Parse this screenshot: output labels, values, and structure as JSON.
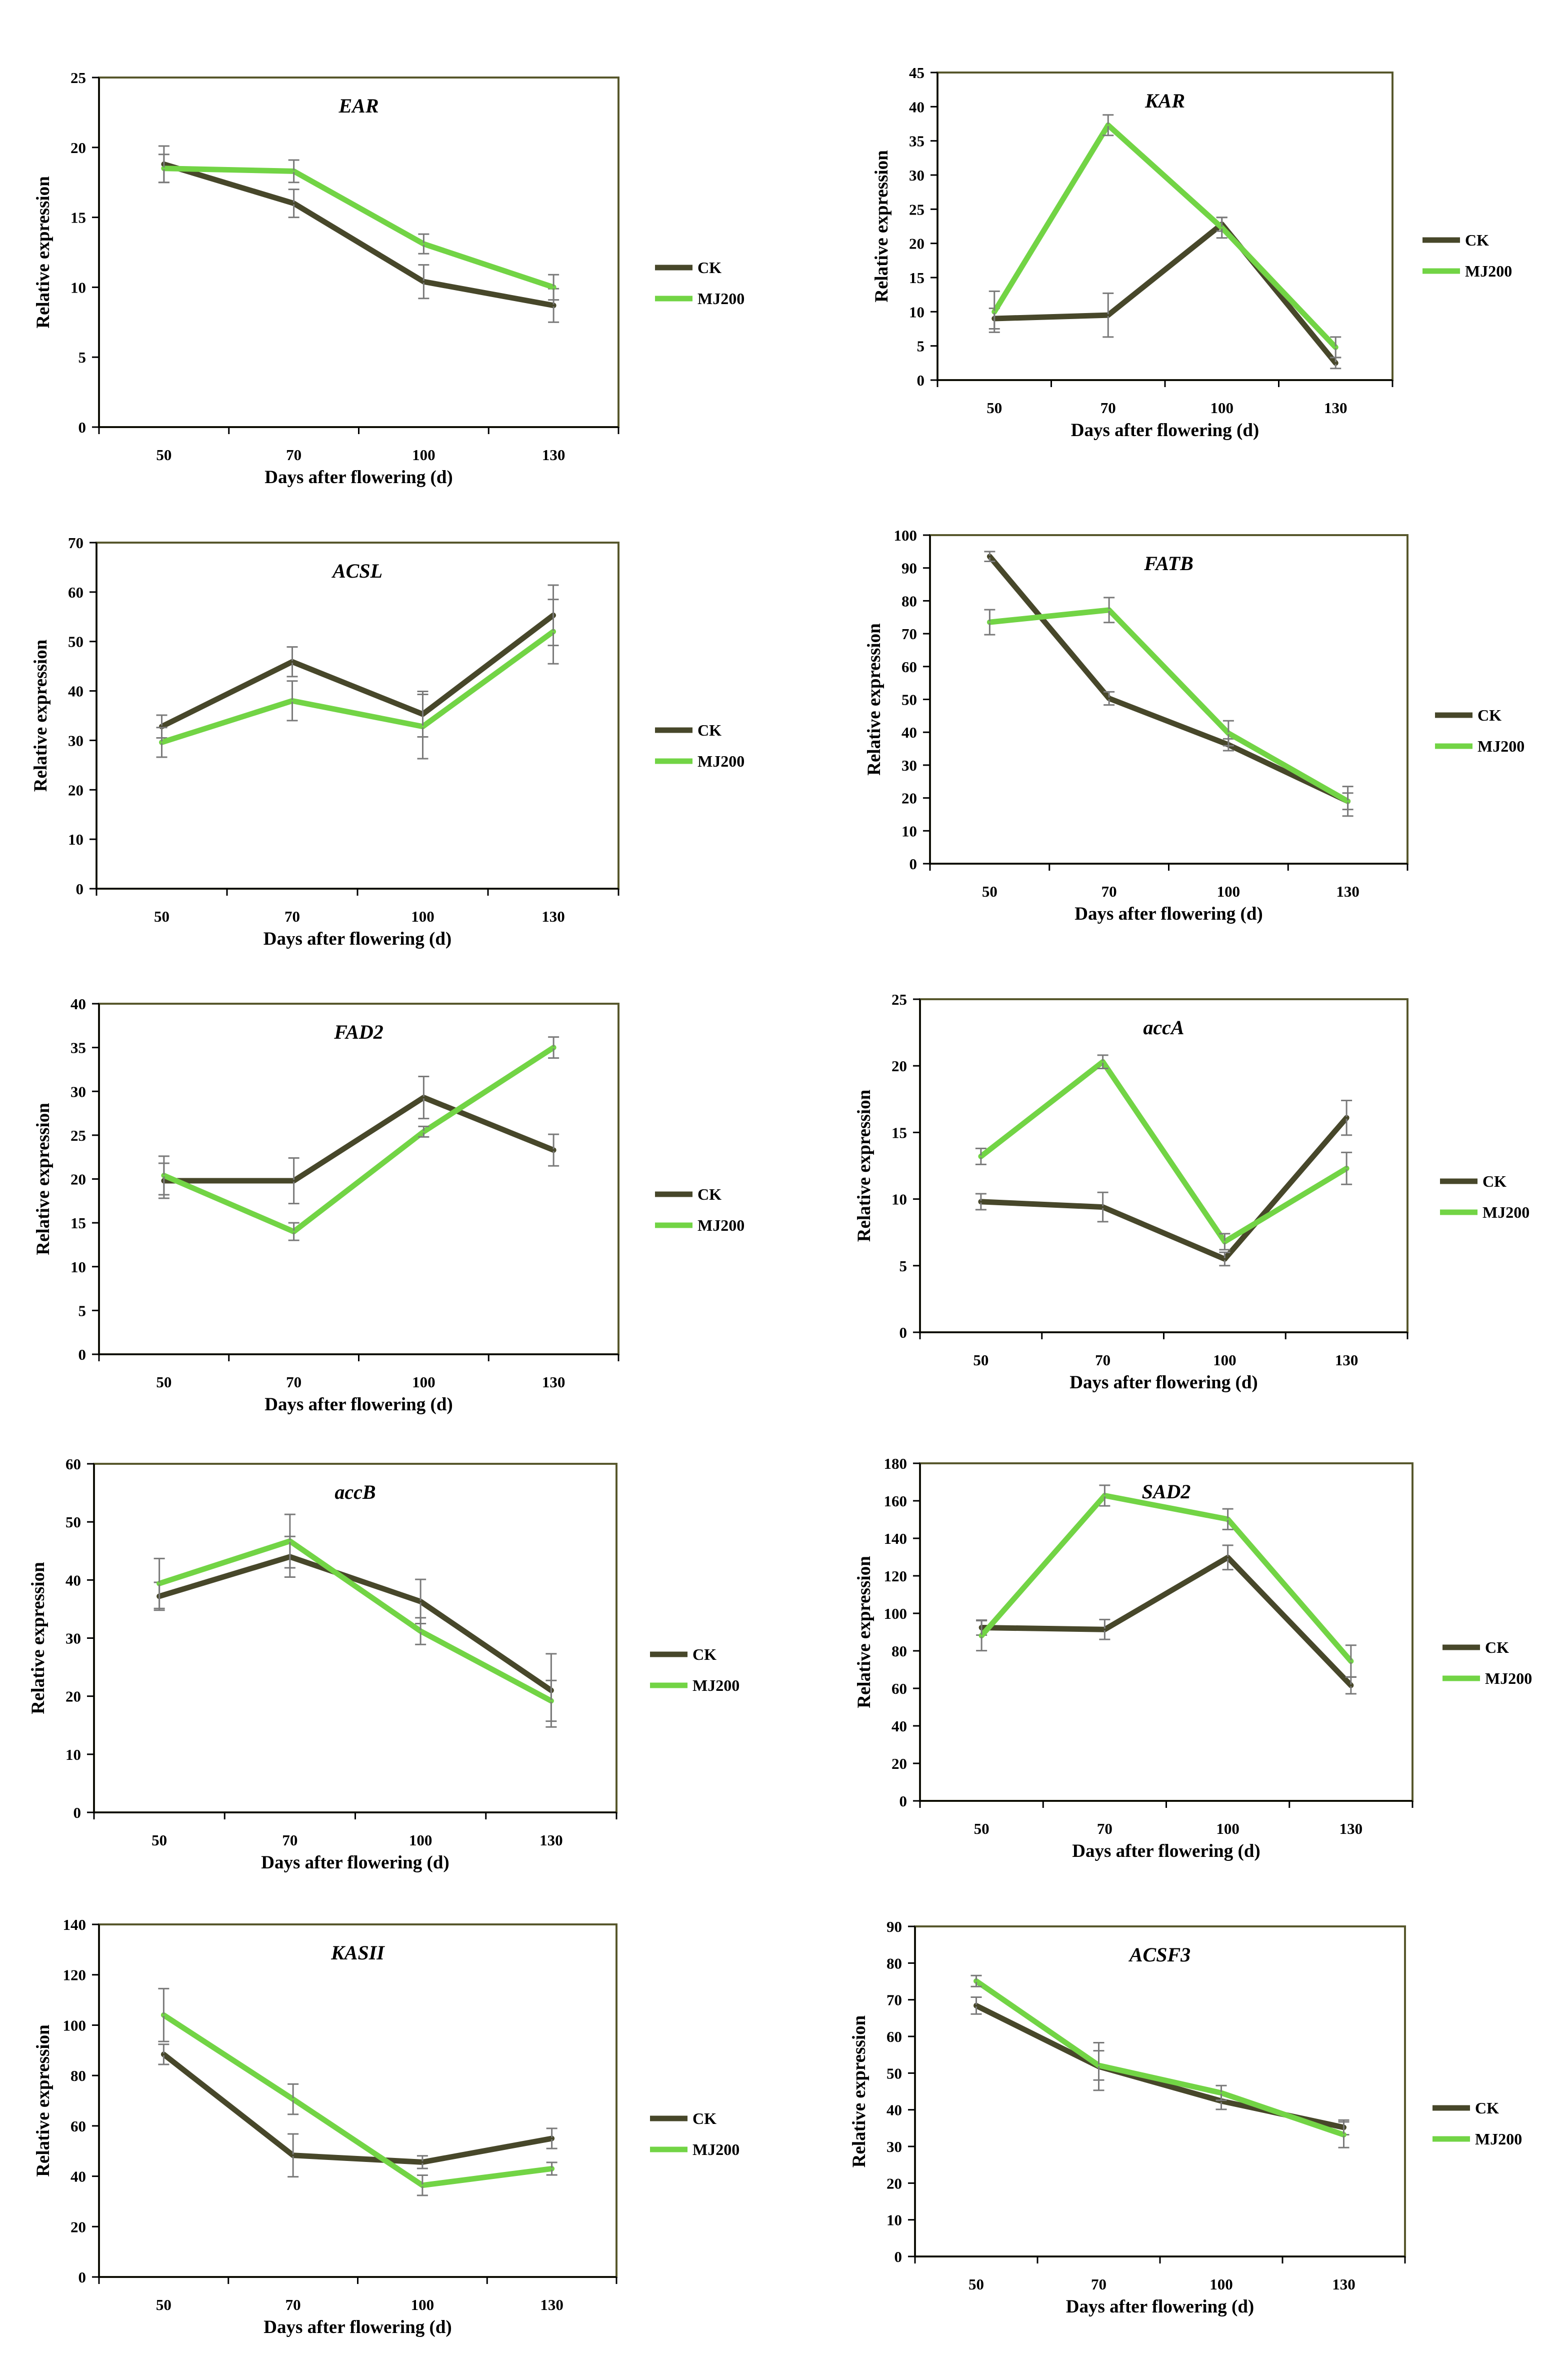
{
  "figure": {
    "x_label": "Days after flowering (d)",
    "y_label": "Relative expression",
    "colors": {
      "ck": "#47472a",
      "mj200": "#72d445",
      "error": "#7a7a7a",
      "frame": "#58582d",
      "axis": "#000000"
    }
  },
  "chart_data": [
    {
      "type": "line",
      "title": "EAR",
      "xlabel": "Days after flowering (d)",
      "ylabel": "Relative expression",
      "categories": [
        "50",
        "70",
        "100",
        "130"
      ],
      "ylim": [
        0,
        25
      ],
      "yticks": [
        "0",
        "5",
        "10",
        "15",
        "20",
        "25"
      ],
      "legend": [
        "CK",
        "MJ200"
      ],
      "series": [
        {
          "name": "CK",
          "values": [
            18.8,
            16.0,
            10.4,
            8.7
          ],
          "errors": [
            1.3,
            1.0,
            1.2,
            1.2
          ]
        },
        {
          "name": "MJ200",
          "values": [
            18.5,
            18.3,
            13.1,
            10.0
          ],
          "errors": [
            1.0,
            0.8,
            0.7,
            0.9
          ]
        }
      ]
    },
    {
      "type": "line",
      "title": "KAR",
      "xlabel": "Days after flowering (d)",
      "ylabel": "Relative expression",
      "categories": [
        "50",
        "70",
        "100",
        "130"
      ],
      "ylim": [
        0,
        45
      ],
      "yticks": [
        "0",
        "5",
        "10",
        "15",
        "20",
        "25",
        "30",
        "35",
        "40",
        "45"
      ],
      "legend": [
        "CK",
        "MJ200"
      ],
      "series": [
        {
          "name": "CK",
          "values": [
            9.0,
            9.5,
            22.8,
            2.5
          ],
          "errors": [
            1.5,
            3.2,
            1.0,
            0.8
          ]
        },
        {
          "name": "MJ200",
          "values": [
            10.0,
            37.3,
            22.3,
            4.8
          ],
          "errors": [
            3.0,
            1.5,
            1.5,
            1.5
          ]
        }
      ]
    },
    {
      "type": "line",
      "title": "ACSL",
      "xlabel": "Days after flowering (d)",
      "ylabel": "Relative expression",
      "categories": [
        "50",
        "70",
        "100",
        "130"
      ],
      "ylim": [
        0,
        70
      ],
      "yticks": [
        "0",
        "10",
        "20",
        "30",
        "40",
        "50",
        "60",
        "70"
      ],
      "legend": [
        "CK",
        "MJ200"
      ],
      "series": [
        {
          "name": "CK",
          "values": [
            32.8,
            45.9,
            35.3,
            55.3
          ],
          "errors": [
            2.3,
            3.0,
            4.6,
            6.1
          ]
        },
        {
          "name": "MJ200",
          "values": [
            29.6,
            38.0,
            32.8,
            52.0
          ],
          "errors": [
            3.0,
            4.0,
            6.5,
            6.5
          ]
        }
      ]
    },
    {
      "type": "line",
      "title": "FATB",
      "xlabel": "Days after flowering (d)",
      "ylabel": "Relative expression",
      "categories": [
        "50",
        "70",
        "100",
        "130"
      ],
      "ylim": [
        0,
        100
      ],
      "yticks": [
        "0",
        "10",
        "20",
        "30",
        "40",
        "50",
        "60",
        "70",
        "80",
        "90",
        "100"
      ],
      "legend": [
        "CK",
        "MJ200"
      ],
      "series": [
        {
          "name": "CK",
          "values": [
            93.5,
            50.3,
            36.2,
            19.0
          ],
          "errors": [
            1.5,
            2.0,
            1.8,
            2.5
          ]
        },
        {
          "name": "MJ200",
          "values": [
            73.5,
            77.2,
            39.7,
            19.0
          ],
          "errors": [
            3.8,
            3.8,
            3.8,
            4.5
          ]
        }
      ]
    },
    {
      "type": "line",
      "title": "FAD2",
      "xlabel": "Days after flowering (d)",
      "ylabel": "Relative expression",
      "categories": [
        "50",
        "70",
        "100",
        "130"
      ],
      "ylim": [
        0,
        40
      ],
      "yticks": [
        "0",
        "5",
        "10",
        "15",
        "20",
        "25",
        "30",
        "35",
        "40"
      ],
      "legend": [
        "CK",
        "MJ200"
      ],
      "series": [
        {
          "name": "CK",
          "values": [
            19.8,
            19.8,
            29.3,
            23.3
          ],
          "errors": [
            2.0,
            2.6,
            2.4,
            1.8
          ]
        },
        {
          "name": "MJ200",
          "values": [
            20.4,
            14.0,
            25.4,
            35.0
          ],
          "errors": [
            2.2,
            1.0,
            0.6,
            1.2
          ]
        }
      ]
    },
    {
      "type": "line",
      "title": "accA",
      "xlabel": "Days after flowering (d)",
      "ylabel": "Relative expression",
      "categories": [
        "50",
        "70",
        "100",
        "130"
      ],
      "ylim": [
        0,
        25
      ],
      "yticks": [
        "0",
        "5",
        "10",
        "15",
        "20",
        "25"
      ],
      "legend": [
        "CK",
        "MJ200"
      ],
      "series": [
        {
          "name": "CK",
          "values": [
            9.8,
            9.4,
            5.5,
            16.1
          ],
          "errors": [
            0.6,
            1.1,
            0.5,
            1.3
          ]
        },
        {
          "name": "MJ200",
          "values": [
            13.2,
            20.3,
            6.8,
            12.3
          ],
          "errors": [
            0.6,
            0.5,
            0.6,
            1.2
          ]
        }
      ]
    },
    {
      "type": "line",
      "title": "accB",
      "xlabel": "Days after flowering (d)",
      "ylabel": "Relative expression",
      "categories": [
        "50",
        "70",
        "100",
        "130"
      ],
      "ylim": [
        0,
        60
      ],
      "yticks": [
        "0",
        "10",
        "20",
        "30",
        "40",
        "50",
        "60"
      ],
      "legend": [
        "CK",
        "MJ200"
      ],
      "series": [
        {
          "name": "CK",
          "values": [
            37.2,
            44.0,
            36.3,
            21.0
          ],
          "errors": [
            2.4,
            3.5,
            3.8,
            6.3
          ]
        },
        {
          "name": "MJ200",
          "values": [
            39.4,
            46.7,
            31.2,
            19.2
          ],
          "errors": [
            4.3,
            4.6,
            2.3,
            3.5
          ]
        }
      ]
    },
    {
      "type": "line",
      "title": "SAD2",
      "xlabel": "Days after flowering (d)",
      "ylabel": "Relative expression",
      "categories": [
        "50",
        "70",
        "100",
        "130"
      ],
      "ylim": [
        0,
        180
      ],
      "yticks": [
        "0",
        "20",
        "40",
        "60",
        "80",
        "100",
        "120",
        "140",
        "160",
        "180"
      ],
      "legend": [
        "CK",
        "MJ200"
      ],
      "series": [
        {
          "name": "CK",
          "values": [
            92.4,
            91.4,
            129.8,
            61.6
          ],
          "errors": [
            4.0,
            5.3,
            6.5,
            4.5
          ]
        },
        {
          "name": "MJ200",
          "values": [
            88.1,
            162.8,
            150.2,
            74.5
          ],
          "errors": [
            8.0,
            5.5,
            5.5,
            8.5
          ]
        }
      ]
    },
    {
      "type": "line",
      "title": "KASII",
      "xlabel": "Days after flowering (d)",
      "ylabel": "Relative expression",
      "categories": [
        "50",
        "70",
        "100",
        "130"
      ],
      "ylim": [
        0,
        140
      ],
      "yticks": [
        "0",
        "20",
        "40",
        "60",
        "80",
        "100",
        "120",
        "140"
      ],
      "legend": [
        "CK",
        "MJ200"
      ],
      "series": [
        {
          "name": "CK",
          "values": [
            88.4,
            48.3,
            45.6,
            55.0
          ],
          "errors": [
            4.0,
            8.5,
            2.5,
            4.0
          ]
        },
        {
          "name": "MJ200",
          "values": [
            104.0,
            70.6,
            36.4,
            43.0
          ],
          "errors": [
            10.5,
            6.0,
            4.0,
            2.5
          ]
        }
      ]
    },
    {
      "type": "line",
      "title": "ACSF3",
      "xlabel": "Days after flowering (d)",
      "ylabel": "Relative expression",
      "categories": [
        "50",
        "70",
        "100",
        "130"
      ],
      "ylim": [
        0,
        90
      ],
      "yticks": [
        "0",
        "10",
        "20",
        "30",
        "40",
        "50",
        "60",
        "70",
        "80",
        "90"
      ],
      "legend": [
        "CK",
        "MJ200"
      ],
      "series": [
        {
          "name": "CK",
          "values": [
            68.4,
            51.8,
            42.4,
            35.2
          ],
          "errors": [
            2.3,
            6.5,
            2.3,
            2.0
          ]
        },
        {
          "name": "MJ200",
          "values": [
            75.1,
            52.1,
            44.6,
            33.2
          ],
          "errors": [
            1.5,
            4.0,
            2.0,
            3.5
          ]
        }
      ]
    }
  ]
}
